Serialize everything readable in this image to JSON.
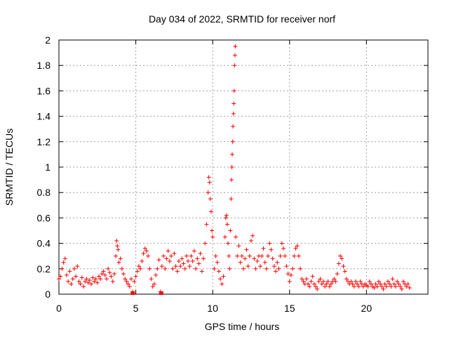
{
  "chart_data": {
    "type": "scatter",
    "title": "Day 034 of 2022, SRMTID for receiver norf",
    "xlabel": "GPS time / hours",
    "ylabel": "SRMTID / TECUs",
    "xlim": [
      0,
      24
    ],
    "ylim": [
      0,
      2
    ],
    "xticks": [
      0,
      5,
      10,
      15,
      20
    ],
    "xtick_labels": [
      "0",
      "5",
      "10",
      "15",
      "20"
    ],
    "yticks": [
      0,
      0.2,
      0.4,
      0.6,
      0.8,
      1,
      1.2,
      1.4,
      1.6,
      1.8,
      2
    ],
    "ytick_labels": [
      "0",
      "0.2",
      "0.4",
      "0.6",
      "0.8",
      "1",
      "1.2",
      "1.4",
      "1.6",
      "1.8",
      "2"
    ],
    "grid": true,
    "marker": "+",
    "color": "#ff0000",
    "series": [
      {
        "name": "SRMTID",
        "points": [
          [
            0.0,
            0.12
          ],
          [
            0.1,
            0.14
          ],
          [
            0.2,
            0.2
          ],
          [
            0.3,
            0.25
          ],
          [
            0.4,
            0.28
          ],
          [
            0.5,
            0.15
          ],
          [
            0.6,
            0.1
          ],
          [
            0.7,
            0.18
          ],
          [
            0.8,
            0.08
          ],
          [
            0.9,
            0.12
          ],
          [
            1.0,
            0.2
          ],
          [
            1.1,
            0.14
          ],
          [
            1.2,
            0.22
          ],
          [
            1.3,
            0.1
          ],
          [
            1.4,
            0.08
          ],
          [
            1.5,
            0.13
          ],
          [
            1.6,
            0.06
          ],
          [
            1.7,
            0.1
          ],
          [
            1.8,
            0.12
          ],
          [
            1.9,
            0.09
          ],
          [
            2.0,
            0.11
          ],
          [
            2.1,
            0.08
          ],
          [
            2.2,
            0.13
          ],
          [
            2.3,
            0.1
          ],
          [
            2.4,
            0.12
          ],
          [
            2.5,
            0.09
          ],
          [
            2.6,
            0.14
          ],
          [
            2.7,
            0.12
          ],
          [
            2.8,
            0.16
          ],
          [
            2.9,
            0.18
          ],
          [
            3.0,
            0.15
          ],
          [
            3.1,
            0.12
          ],
          [
            3.2,
            0.2
          ],
          [
            3.3,
            0.17
          ],
          [
            3.4,
            0.14
          ],
          [
            3.5,
            0.1
          ],
          [
            3.6,
            0.16
          ],
          [
            3.7,
            0.3
          ],
          [
            3.75,
            0.42
          ],
          [
            3.8,
            0.38
          ],
          [
            3.85,
            0.35
          ],
          [
            3.9,
            0.25
          ],
          [
            4.0,
            0.28
          ],
          [
            4.1,
            0.2
          ],
          [
            4.2,
            0.16
          ],
          [
            4.3,
            0.12
          ],
          [
            4.4,
            0.1
          ],
          [
            4.5,
            0.08
          ],
          [
            4.6,
            0.06
          ],
          [
            4.7,
            0.12
          ],
          [
            4.8,
            0.02
          ],
          [
            4.9,
            0.1
          ],
          [
            5.0,
            0.14
          ],
          [
            5.1,
            0.18
          ],
          [
            5.2,
            0.22
          ],
          [
            5.3,
            0.2
          ],
          [
            5.4,
            0.26
          ],
          [
            5.5,
            0.32
          ],
          [
            5.6,
            0.36
          ],
          [
            5.7,
            0.34
          ],
          [
            5.8,
            0.3
          ],
          [
            5.9,
            0.2
          ],
          [
            6.0,
            0.12
          ],
          [
            6.1,
            0.06
          ],
          [
            6.2,
            0.08
          ],
          [
            6.3,
            0.15
          ],
          [
            6.4,
            0.2
          ],
          [
            6.5,
            0.27
          ],
          [
            6.6,
            0.02
          ],
          [
            6.7,
            0.22
          ],
          [
            6.8,
            0.3
          ],
          [
            6.9,
            0.2
          ],
          [
            7.0,
            0.28
          ],
          [
            7.1,
            0.34
          ],
          [
            7.2,
            0.26
          ],
          [
            7.3,
            0.3
          ],
          [
            7.4,
            0.2
          ],
          [
            7.5,
            0.32
          ],
          [
            7.6,
            0.22
          ],
          [
            7.7,
            0.18
          ],
          [
            7.8,
            0.26
          ],
          [
            7.9,
            0.22
          ],
          [
            8.0,
            0.28
          ],
          [
            8.1,
            0.24
          ],
          [
            8.2,
            0.2
          ],
          [
            8.3,
            0.3
          ],
          [
            8.4,
            0.26
          ],
          [
            8.5,
            0.22
          ],
          [
            8.6,
            0.3
          ],
          [
            8.7,
            0.26
          ],
          [
            8.8,
            0.34
          ],
          [
            8.9,
            0.2
          ],
          [
            9.0,
            0.28
          ],
          [
            9.1,
            0.24
          ],
          [
            9.2,
            0.32
          ],
          [
            9.3,
            0.18
          ],
          [
            9.4,
            0.28
          ],
          [
            9.5,
            0.4
          ],
          [
            9.6,
            0.55
          ],
          [
            9.7,
            0.8
          ],
          [
            9.75,
            0.92
          ],
          [
            9.8,
            0.88
          ],
          [
            9.85,
            0.75
          ],
          [
            9.9,
            0.65
          ],
          [
            9.95,
            0.5
          ],
          [
            10.0,
            0.45
          ],
          [
            10.1,
            0.2
          ],
          [
            10.2,
            0.3
          ],
          [
            10.3,
            0.25
          ],
          [
            10.4,
            0.18
          ],
          [
            10.5,
            0.12
          ],
          [
            10.6,
            0.08
          ],
          [
            10.7,
            0.14
          ],
          [
            10.8,
            0.45
          ],
          [
            10.85,
            0.6
          ],
          [
            10.9,
            0.62
          ],
          [
            10.95,
            0.55
          ],
          [
            11.0,
            0.4
          ],
          [
            11.05,
            0.3
          ],
          [
            11.1,
            0.2
          ],
          [
            11.15,
            0.5
          ],
          [
            11.2,
            0.75
          ],
          [
            11.22,
            0.9
          ],
          [
            11.25,
            1.0
          ],
          [
            11.27,
            1.1
          ],
          [
            11.3,
            1.2
          ],
          [
            11.32,
            1.32
          ],
          [
            11.35,
            1.42
          ],
          [
            11.37,
            1.5
          ],
          [
            11.4,
            1.6
          ],
          [
            11.42,
            1.8
          ],
          [
            11.45,
            1.88
          ],
          [
            11.47,
            1.95
          ],
          [
            11.5,
            0.45
          ],
          [
            11.6,
            0.3
          ],
          [
            11.7,
            0.38
          ],
          [
            11.8,
            0.25
          ],
          [
            11.9,
            0.3
          ],
          [
            12.0,
            0.2
          ],
          [
            12.1,
            0.28
          ],
          [
            12.2,
            0.35
          ],
          [
            12.3,
            0.22
          ],
          [
            12.4,
            0.3
          ],
          [
            12.5,
            0.42
          ],
          [
            12.6,
            0.46
          ],
          [
            12.7,
            0.28
          ],
          [
            12.8,
            0.2
          ],
          [
            12.9,
            0.26
          ],
          [
            13.0,
            0.3
          ],
          [
            13.1,
            0.22
          ],
          [
            13.2,
            0.3
          ],
          [
            13.3,
            0.36
          ],
          [
            13.4,
            0.25
          ],
          [
            13.5,
            0.2
          ],
          [
            13.6,
            0.3
          ],
          [
            13.7,
            0.4
          ],
          [
            13.8,
            0.35
          ],
          [
            13.9,
            0.28
          ],
          [
            14.0,
            0.22
          ],
          [
            14.1,
            0.18
          ],
          [
            14.2,
            0.25
          ],
          [
            14.3,
            0.2
          ],
          [
            14.4,
            0.3
          ],
          [
            14.5,
            0.4
          ],
          [
            14.6,
            0.36
          ],
          [
            14.7,
            0.3
          ],
          [
            14.8,
            0.22
          ],
          [
            14.9,
            0.16
          ],
          [
            15.0,
            0.1
          ],
          [
            15.1,
            0.15
          ],
          [
            15.2,
            0.2
          ],
          [
            15.3,
            0.3
          ],
          [
            15.4,
            0.36
          ],
          [
            15.5,
            0.38
          ],
          [
            15.6,
            0.3
          ],
          [
            15.7,
            0.2
          ],
          [
            15.8,
            0.12
          ],
          [
            15.9,
            0.1
          ],
          [
            16.0,
            0.08
          ],
          [
            16.1,
            0.12
          ],
          [
            16.2,
            0.08
          ],
          [
            16.3,
            0.06
          ],
          [
            16.4,
            0.1
          ],
          [
            16.5,
            0.14
          ],
          [
            16.6,
            0.08
          ],
          [
            16.7,
            0.06
          ],
          [
            16.8,
            0.04
          ],
          [
            16.9,
            0.1
          ],
          [
            17.0,
            0.12
          ],
          [
            17.1,
            0.08
          ],
          [
            17.2,
            0.1
          ],
          [
            17.3,
            0.06
          ],
          [
            17.4,
            0.08
          ],
          [
            17.5,
            0.1
          ],
          [
            17.6,
            0.06
          ],
          [
            17.7,
            0.08
          ],
          [
            17.8,
            0.1
          ],
          [
            17.9,
            0.12
          ],
          [
            18.0,
            0.1
          ],
          [
            18.1,
            0.16
          ],
          [
            18.2,
            0.24
          ],
          [
            18.3,
            0.3
          ],
          [
            18.4,
            0.28
          ],
          [
            18.5,
            0.22
          ],
          [
            18.6,
            0.18
          ],
          [
            18.7,
            0.12
          ],
          [
            18.8,
            0.1
          ],
          [
            18.9,
            0.08
          ],
          [
            19.0,
            0.1
          ],
          [
            19.1,
            0.08
          ],
          [
            19.2,
            0.06
          ],
          [
            19.3,
            0.1
          ],
          [
            19.4,
            0.08
          ],
          [
            19.5,
            0.06
          ],
          [
            19.6,
            0.1
          ],
          [
            19.7,
            0.08
          ],
          [
            19.8,
            0.06
          ],
          [
            19.9,
            0.08
          ],
          [
            20.0,
            0.07
          ],
          [
            20.1,
            0.06
          ],
          [
            20.2,
            0.1
          ],
          [
            20.3,
            0.08
          ],
          [
            20.4,
            0.06
          ],
          [
            20.5,
            0.05
          ],
          [
            20.6,
            0.08
          ],
          [
            20.7,
            0.06
          ],
          [
            20.8,
            0.1
          ],
          [
            20.9,
            0.08
          ],
          [
            21.0,
            0.06
          ],
          [
            21.1,
            0.04
          ],
          [
            21.2,
            0.08
          ],
          [
            21.3,
            0.06
          ],
          [
            21.4,
            0.1
          ],
          [
            21.5,
            0.08
          ],
          [
            21.6,
            0.06
          ],
          [
            21.7,
            0.12
          ],
          [
            21.8,
            0.08
          ],
          [
            21.9,
            0.06
          ],
          [
            22.0,
            0.1
          ],
          [
            22.1,
            0.08
          ],
          [
            22.2,
            0.06
          ],
          [
            22.3,
            0.04
          ],
          [
            22.4,
            0.1
          ],
          [
            22.5,
            0.08
          ],
          [
            22.6,
            0.06
          ],
          [
            22.7,
            0.08
          ],
          [
            22.8,
            0.05
          ]
        ]
      }
    ],
    "square_markers": [
      [
        4.8,
        0.0
      ],
      [
        6.65,
        0.0
      ]
    ]
  }
}
